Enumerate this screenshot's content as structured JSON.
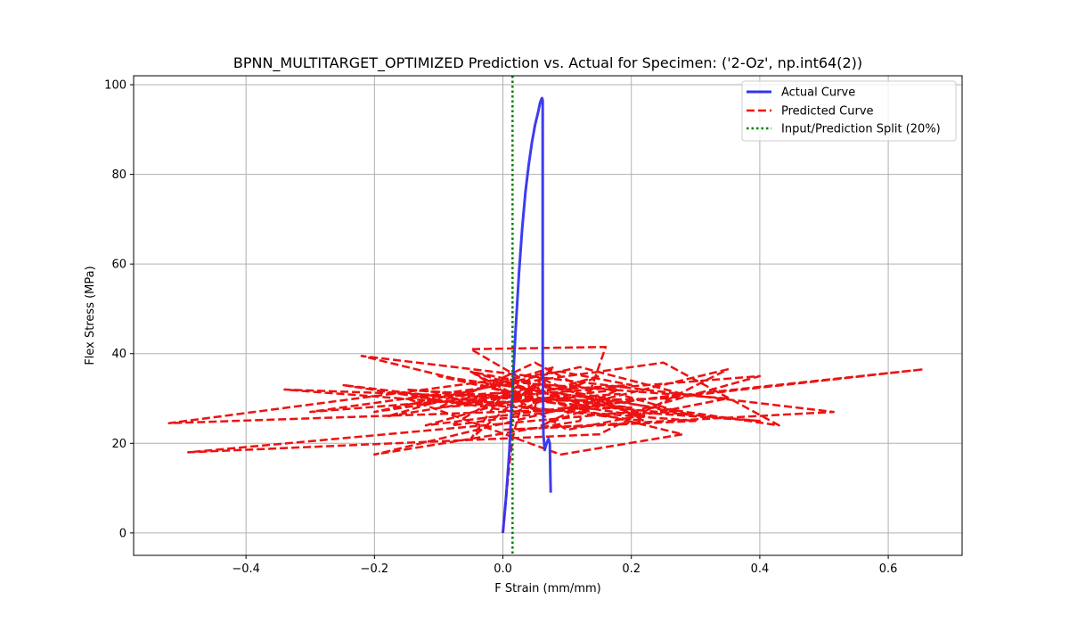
{
  "chart_data": {
    "type": "line",
    "title": "BPNN_MULTITARGET_OPTIMIZED Prediction vs. Actual for Specimen: ('2-Oz', np.int64(2))",
    "xlabel": "F Strain (mm/mm)",
    "ylabel": "Flex Stress (MPa)",
    "xlim": [
      -0.575,
      0.715
    ],
    "ylim": [
      -5,
      102
    ],
    "x_ticks": [
      -0.4,
      -0.2,
      0.0,
      0.2,
      0.4,
      0.6
    ],
    "x_tick_labels": [
      "−0.4",
      "−0.2",
      "0.0",
      "0.2",
      "0.4",
      "0.6"
    ],
    "y_ticks": [
      0,
      20,
      40,
      60,
      80,
      100
    ],
    "y_tick_labels": [
      "0",
      "20",
      "40",
      "60",
      "80",
      "100"
    ],
    "grid": true,
    "legend_position": "upper right",
    "split_x": 0.015,
    "series": [
      {
        "name": "Actual Curve",
        "color": "#3333ee",
        "style": "solid",
        "x": [
          0.0,
          0.005,
          0.01,
          0.015,
          0.02,
          0.025,
          0.03,
          0.035,
          0.04,
          0.045,
          0.05,
          0.055,
          0.058,
          0.06,
          0.061,
          0.062,
          0.062,
          0.063,
          0.065,
          0.068,
          0.071,
          0.073,
          0.074,
          0.0745
        ],
        "y": [
          0,
          8,
          18,
          32,
          46,
          58,
          68,
          76,
          82,
          87,
          91,
          94,
          96,
          96.8,
          97,
          96.5,
          40,
          22,
          18.5,
          20,
          21,
          20,
          12,
          9
        ]
      },
      {
        "name": "Predicted Curve",
        "color": "#ee1111",
        "style": "dashed",
        "x": [
          0.0,
          0.005,
          0.01,
          0.015,
          0.02,
          0.03,
          0.04,
          0.05,
          0.06,
          0.07,
          -0.05,
          0.16,
          0.12,
          -0.2,
          0.35,
          0.15,
          -0.49,
          0.2,
          0.4,
          -0.3,
          0.25,
          0.43,
          -0.1,
          0.05,
          -0.34,
          0.3,
          0.0,
          0.515,
          0.1,
          -0.22,
          0.28,
          0.09,
          -0.15,
          0.2,
          0.09,
          -0.52,
          0.2,
          0.0,
          -0.05,
          0.08,
          -0.18,
          0.12,
          -0.08,
          0.25,
          0.655,
          0.1,
          -0.12,
          0.15,
          0.02,
          -0.25,
          0.22,
          0.05,
          -0.1,
          0.18,
          0.3,
          -0.05,
          0.1,
          0.35,
          -0.02,
          0.2,
          0.4,
          -0.15,
          0.15,
          0.05,
          -0.08,
          0.28,
          0.12,
          -0.2,
          0.08,
          0.22,
          0.03,
          -0.05,
          0.14,
          0.06,
          0.18,
          0.0
        ],
        "y": [
          0,
          8,
          15,
          21,
          24,
          29,
          33,
          28,
          36,
          31,
          41,
          41.5,
          25,
          17.5,
          36.5,
          22,
          18,
          27,
          35,
          27,
          38,
          24,
          35,
          30,
          32,
          25,
          23,
          27,
          34,
          39.5,
          22,
          17.5,
          30,
          33,
          36,
          24.5,
          28,
          31,
          21,
          37,
          26,
          33,
          29,
          30,
          36.5,
          28,
          24,
          35,
          27,
          33,
          25,
          38,
          28,
          31,
          26,
          36,
          23,
          30,
          34,
          27,
          25,
          32,
          29,
          35,
          24,
          31,
          37,
          27,
          33,
          26,
          30,
          36,
          28,
          24,
          32,
          29
        ]
      }
    ]
  },
  "legend": {
    "items": [
      {
        "label": "Actual Curve",
        "color": "#3333ee",
        "style": "solid"
      },
      {
        "label": "Predicted Curve",
        "color": "#ee1111",
        "style": "dashed"
      },
      {
        "label": "Input/Prediction Split (20%)",
        "color": "#008000",
        "style": "dotted"
      }
    ]
  }
}
